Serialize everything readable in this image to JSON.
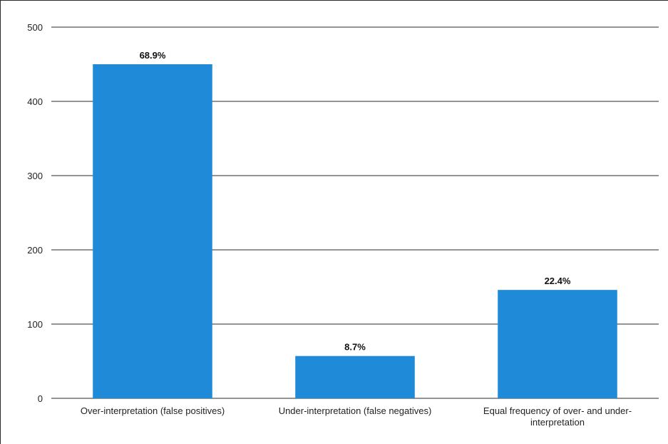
{
  "chart_data": {
    "type": "bar",
    "categories": [
      "Over-interpretation (false positives)",
      "Under-interpretation (false negatives)",
      "Equal frequency of over- and under-interpretation"
    ],
    "category_lines": [
      [
        "Over-interpretation (false positives)"
      ],
      [
        "Under-interpretation (false negatives)"
      ],
      [
        "Equal frequency of over- and under-",
        "interpretation"
      ]
    ],
    "values": [
      450,
      57,
      146
    ],
    "data_labels": [
      "68.9%",
      "8.7%",
      "22.4%"
    ],
    "yticks": [
      0,
      100,
      200,
      300,
      400,
      500
    ],
    "ylim": [
      0,
      500
    ],
    "grid": true,
    "legend": "none",
    "title": "",
    "xlabel": "",
    "ylabel": "",
    "colors": {
      "bar": "#1f8bd8",
      "grid": "#555555"
    }
  }
}
